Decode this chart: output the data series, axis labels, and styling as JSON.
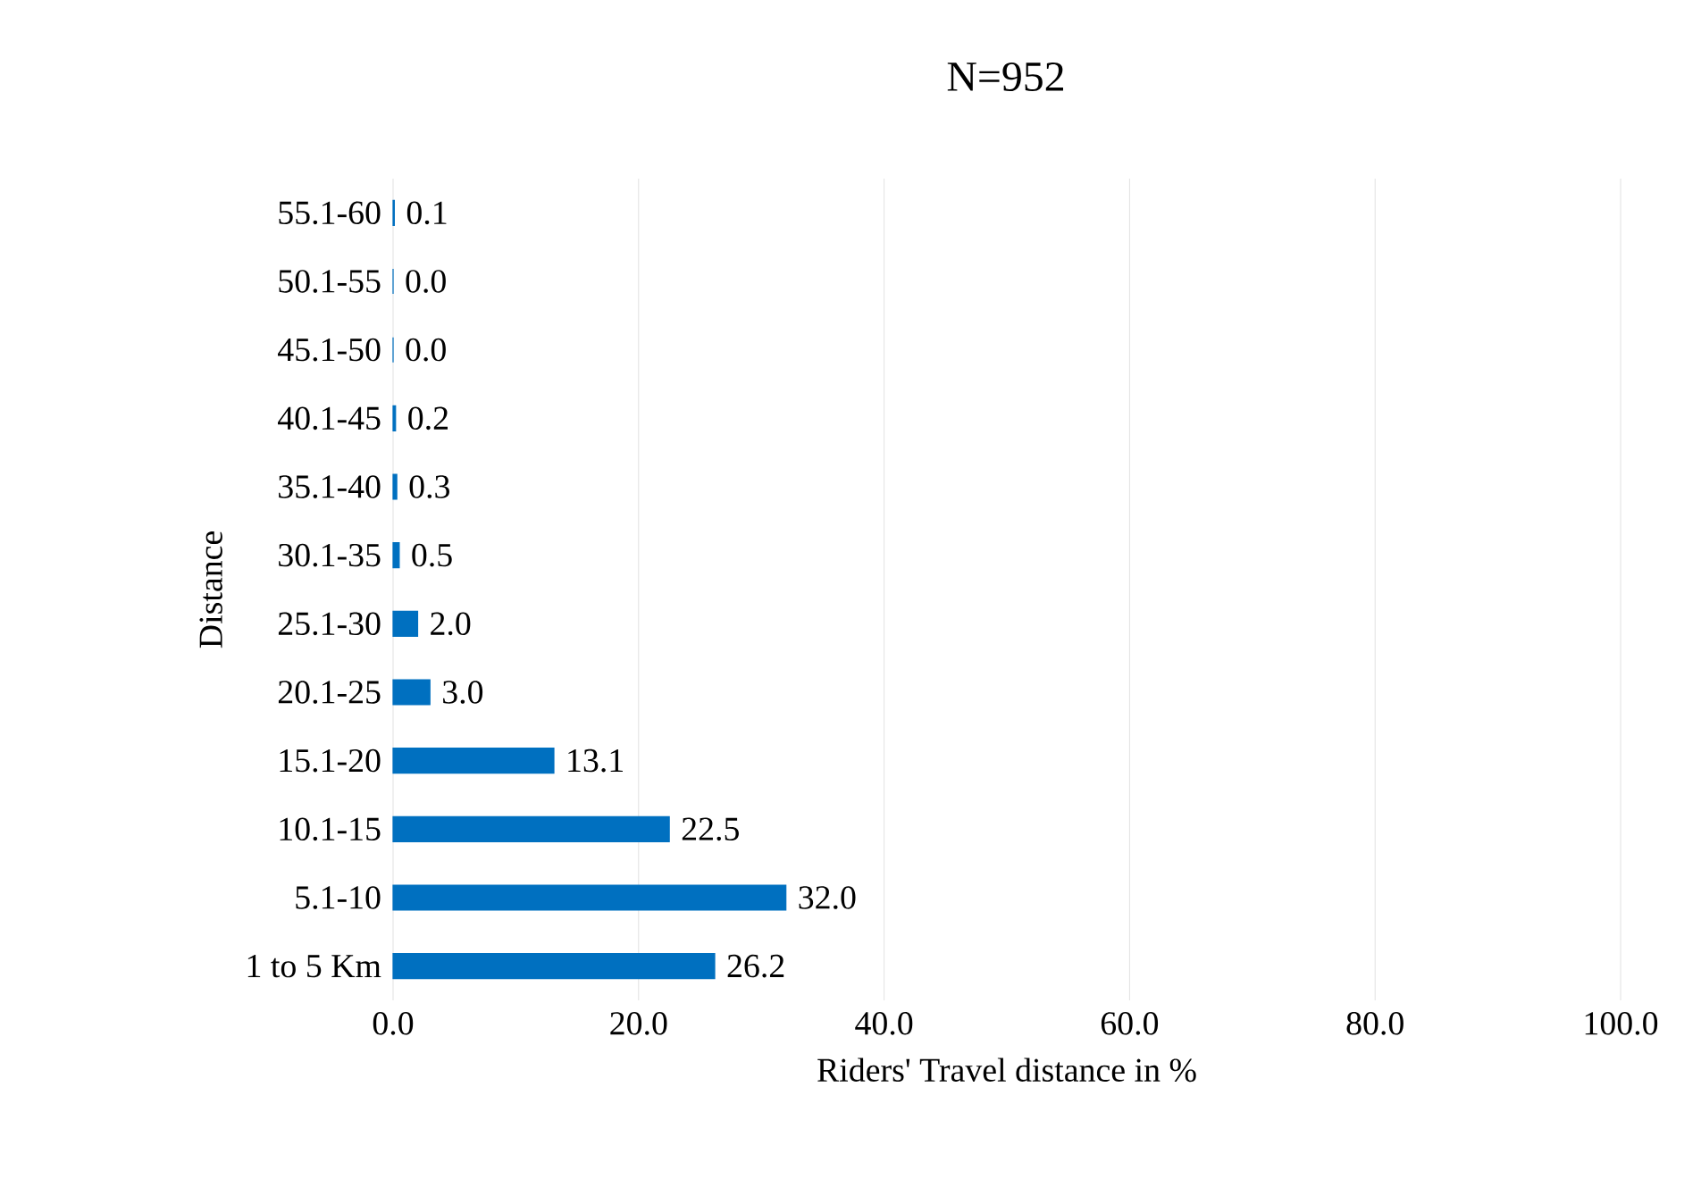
{
  "chart_data": {
    "type": "bar",
    "orientation": "horizontal",
    "title": "N=952",
    "xlabel": "Riders' Travel distance in %",
    "ylabel": "Distance",
    "categories": [
      "55.1-60",
      "50.1-55",
      "45.1-50",
      "40.1-45",
      "35.1-40",
      "30.1-35",
      "25.1-30",
      "20.1-25",
      "15.1-20",
      "10.1-15",
      "5.1-10",
      "1 to 5 Km"
    ],
    "values": [
      0.1,
      0.0,
      0.0,
      0.2,
      0.3,
      0.5,
      2.0,
      3.0,
      13.1,
      22.5,
      32.0,
      26.2
    ],
    "value_labels": [
      "0.1",
      "0.0",
      "0.0",
      "0.2",
      "0.3",
      "0.5",
      "2.0",
      "3.0",
      "13.1",
      "22.5",
      "32.0",
      "26.2"
    ],
    "color": "#0070c0",
    "xlim": [
      0,
      100
    ],
    "xticks": [
      {
        "value": 0,
        "label": "0.0"
      },
      {
        "value": 20,
        "label": "20.0"
      },
      {
        "value": 40,
        "label": "40.0"
      },
      {
        "value": 60,
        "label": "60.0"
      },
      {
        "value": 80,
        "label": "80.0"
      },
      {
        "value": 100,
        "label": "100.0"
      }
    ],
    "grid": "x"
  }
}
